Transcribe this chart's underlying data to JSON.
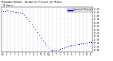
{
  "title": "Milwaukee Weather  Barometric Pressure per Minute\n(24 Hours)",
  "bg_color": "#ffffff",
  "plot_bg": "#ffffff",
  "dot_color": "#0000ff",
  "dot_size": 0.8,
  "grid_color": "#bbbbbb",
  "legend_box_color": "#0000ff",
  "legend_box_label": "Barometric Pressure",
  "ylabel_color": "#000000",
  "xlabel_color": "#000000",
  "x_ticks": [
    0,
    1,
    2,
    3,
    4,
    5,
    6,
    7,
    8,
    9,
    10,
    11,
    12,
    13,
    14,
    15,
    16,
    17,
    18,
    19,
    20,
    21,
    22,
    23
  ],
  "x_tick_labels": [
    "12a",
    "1",
    "2",
    "3",
    "4",
    "5",
    "6",
    "7",
    "8",
    "9",
    "10",
    "11",
    "12p",
    "1",
    "2",
    "3",
    "4",
    "5",
    "6",
    "7",
    "8",
    "9",
    "10",
    "11"
  ],
  "y_ticks": [
    29.0,
    29.1,
    29.2,
    29.3,
    29.4,
    29.5,
    29.6,
    29.7,
    29.8,
    29.9,
    30.0,
    30.1,
    30.2
  ],
  "y_tick_labels": [
    "29.00",
    "29.10",
    "29.20",
    "29.30",
    "29.40",
    "29.50",
    "29.60",
    "29.70",
    "29.80",
    "29.90",
    "30.00",
    "30.10",
    "30.20"
  ],
  "ylim": [
    28.95,
    30.25
  ],
  "xlim": [
    -0.5,
    23.5
  ],
  "data_x": [
    0.0,
    0.5,
    1.0,
    1.5,
    2.0,
    2.5,
    3.0,
    3.5,
    4.0,
    4.5,
    5.0,
    5.5,
    6.0,
    6.5,
    7.0,
    7.5,
    8.0,
    8.5,
    9.0,
    9.5,
    10.0,
    10.5,
    11.0,
    11.5,
    12.0,
    12.5,
    13.0,
    13.5,
    14.0,
    14.5,
    15.0,
    15.5,
    16.0,
    16.5,
    17.0,
    17.5,
    18.0,
    18.5,
    19.0,
    19.5,
    20.0,
    20.5,
    21.0,
    21.5,
    22.0,
    22.5,
    23.0
  ],
  "data_y": [
    30.13,
    30.14,
    30.15,
    30.15,
    30.13,
    30.13,
    30.12,
    30.11,
    30.1,
    30.09,
    30.08,
    30.04,
    29.98,
    29.92,
    29.85,
    29.77,
    29.68,
    29.6,
    29.52,
    29.44,
    29.36,
    29.28,
    29.2,
    29.13,
    29.07,
    29.02,
    28.99,
    28.98,
    28.99,
    29.01,
    29.03,
    29.06,
    29.08,
    29.1,
    29.12,
    29.13,
    29.14,
    29.15,
    29.16,
    29.17,
    29.18,
    29.19,
    29.2,
    29.21,
    29.22,
    29.23,
    29.24
  ]
}
